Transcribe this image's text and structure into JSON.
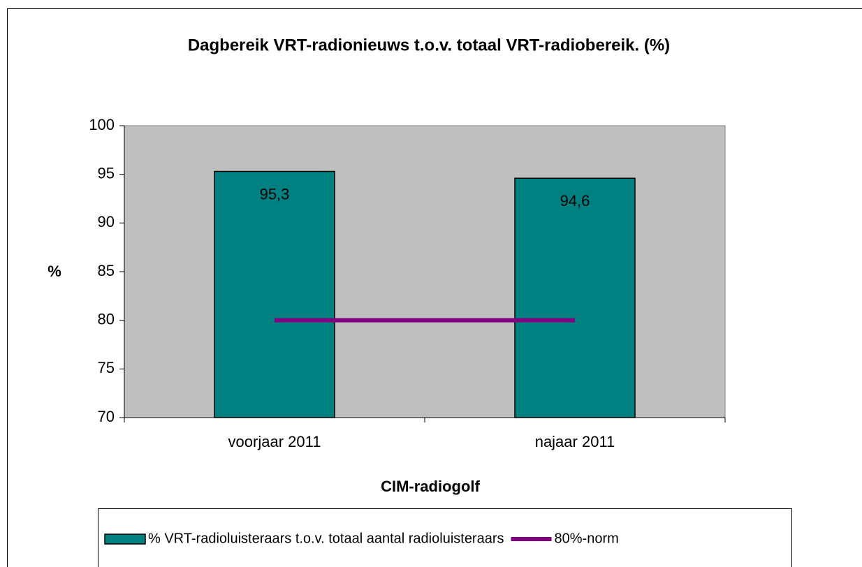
{
  "chart_data": {
    "type": "bar",
    "title": "Dagbereik VRT-radionieuws t.o.v. totaal VRT-radiobereik. (%)",
    "y_label": "%",
    "x_label": "CIM-radiogolf",
    "categories": [
      "voorjaar 2011",
      "najaar 2011"
    ],
    "series": [
      {
        "name": "% VRT-radioluisteraars t.o.v. totaal aantal radioluisteraars",
        "type": "bar",
        "color": "#008080",
        "values": [
          95.3,
          94.6
        ],
        "value_labels": [
          "95,3",
          "94,6"
        ]
      },
      {
        "name": "80%-norm",
        "type": "line",
        "color": "#800080",
        "values": [
          80,
          80
        ]
      }
    ],
    "ylim": [
      70,
      100
    ],
    "yticks": [
      70,
      75,
      80,
      85,
      90,
      95,
      100
    ],
    "plot_background": "#c0c0c0",
    "legend": "bottom"
  }
}
